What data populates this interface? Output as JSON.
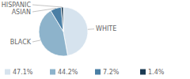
{
  "chart_data": {
    "type": "pie",
    "categories": [
      "WHITE",
      "BLACK",
      "ASIAN",
      "HISPANIC"
    ],
    "values": [
      47.1,
      44.2,
      7.2,
      1.4
    ],
    "value_labels": [
      "47.1%",
      "44.2%",
      "7.2%",
      "1.4%"
    ],
    "colors": [
      "#d6e3ee",
      "#8db3cb",
      "#4a7fa5",
      "#1b3a52"
    ],
    "legend": "bottom"
  }
}
